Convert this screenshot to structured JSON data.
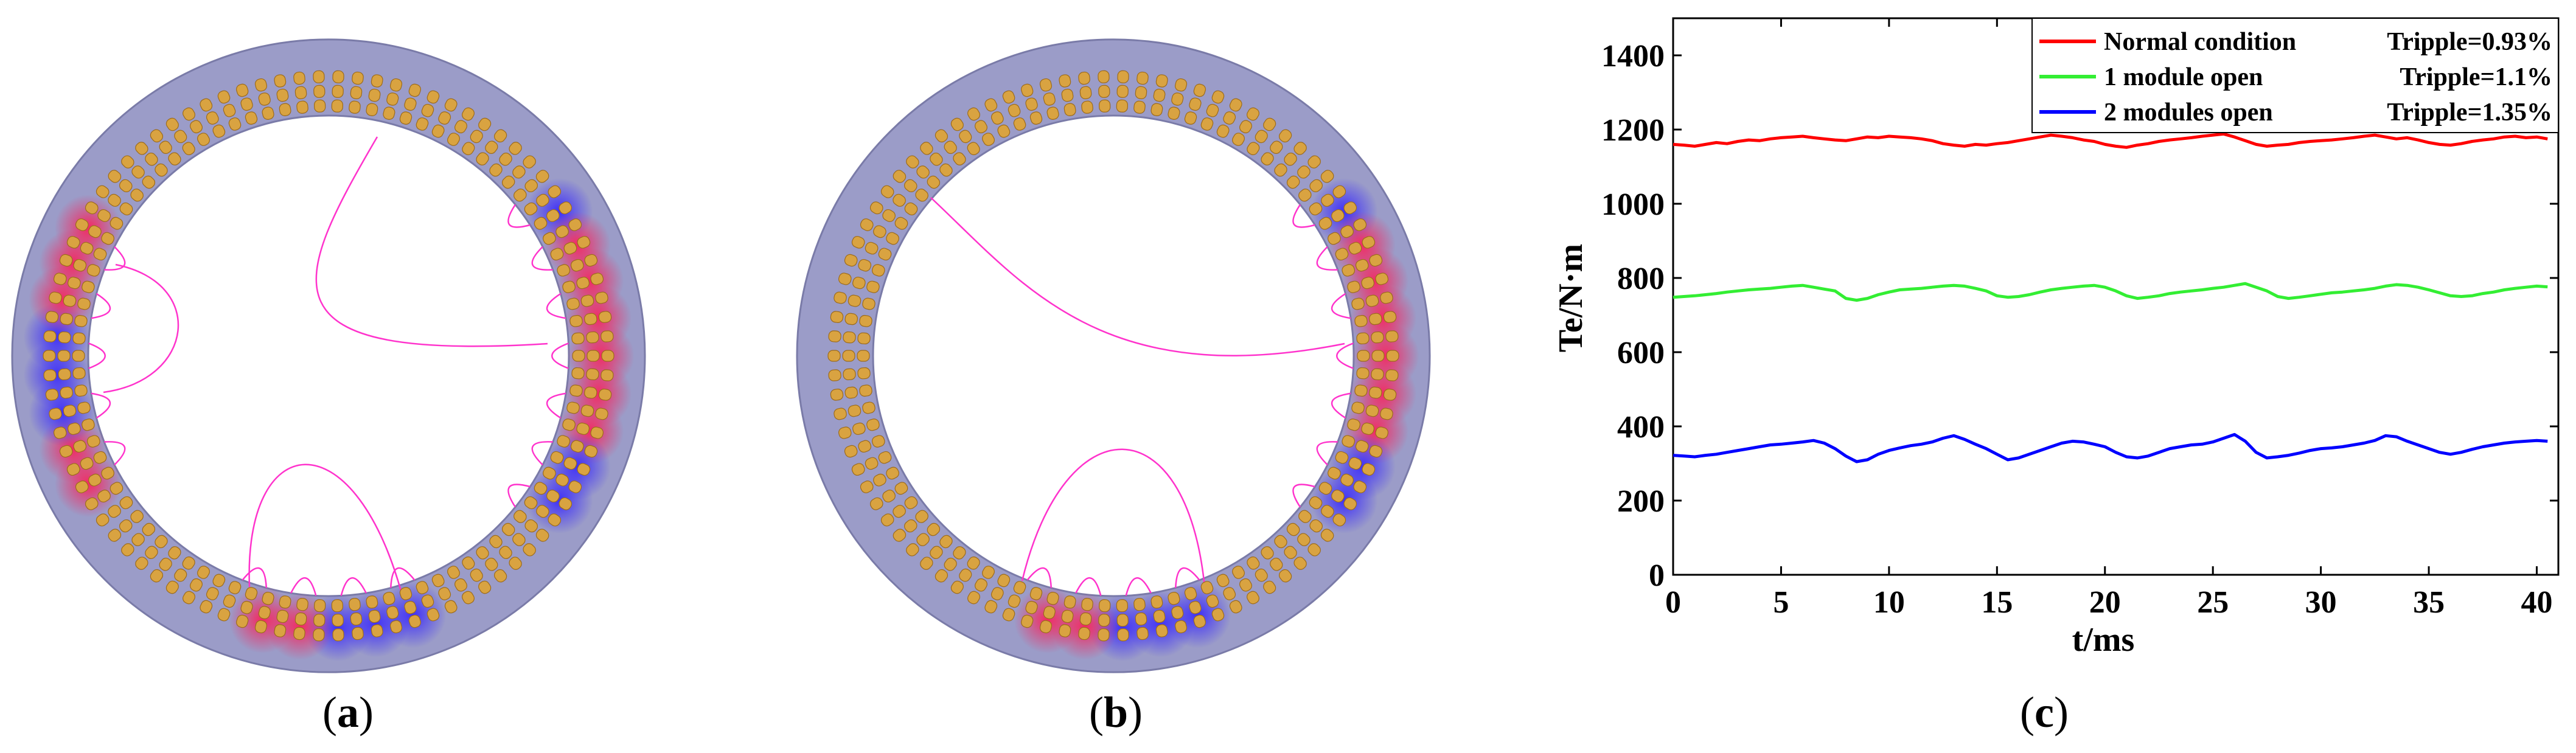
{
  "figure": {
    "panels": [
      {
        "id": "a",
        "caption_open": "(",
        "caption_letter": "a",
        "caption_close": ")"
      },
      {
        "id": "b",
        "caption_open": "(",
        "caption_letter": "b",
        "caption_close": ")"
      },
      {
        "id": "c",
        "caption_open": "(",
        "caption_letter": "c",
        "caption_close": ")"
      }
    ]
  },
  "colors": {
    "stator": "#9b9cc8",
    "winding": "#d9a341",
    "flux_line": "#ff33cc",
    "flux_positive": "#ff1a55",
    "flux_negative": "#3322ff"
  },
  "motor_views": [
    {
      "panel": "a",
      "slot_count": 90,
      "excited_regions_deg": [
        [
          -38,
          38
        ],
        [
          70,
          110
        ],
        [
          145,
          215
        ]
      ]
    },
    {
      "panel": "b",
      "slot_count": 90,
      "excited_regions_deg": [
        [
          -38,
          38
        ],
        [
          70,
          110
        ]
      ]
    }
  ],
  "chart_data": {
    "type": "line",
    "xlabel": "t/ms",
    "ylabel": "Te/N·m",
    "xlim": [
      0,
      41
    ],
    "ylim": [
      0,
      1500
    ],
    "xticks": [
      0,
      5,
      10,
      15,
      20,
      25,
      30,
      35,
      40
    ],
    "yticks": [
      0,
      200,
      400,
      600,
      800,
      1000,
      1200,
      1400
    ],
    "grid": false,
    "legend_position": "top-right",
    "x": [
      0,
      0.5,
      1,
      1.5,
      2,
      2.5,
      3,
      3.5,
      4,
      4.5,
      5,
      5.5,
      6,
      6.5,
      7,
      7.5,
      8,
      8.5,
      9,
      9.5,
      10,
      10.5,
      11,
      11.5,
      12,
      12.5,
      13,
      13.5,
      14,
      14.5,
      15,
      15.5,
      16,
      16.5,
      17,
      17.5,
      18,
      18.5,
      19,
      19.5,
      20,
      20.5,
      21,
      21.5,
      22,
      22.5,
      23,
      23.5,
      24,
      24.5,
      25,
      25.5,
      26,
      26.5,
      27,
      27.5,
      28,
      28.5,
      29,
      29.5,
      30,
      30.5,
      31,
      31.5,
      32,
      32.5,
      33,
      33.5,
      34,
      34.5,
      35,
      35.5,
      36,
      36.5,
      37,
      37.5,
      38,
      38.5,
      39,
      39.5,
      40,
      40.5
    ],
    "series": [
      {
        "name": "Normal condition",
        "ripple": "Tripple=0.93%",
        "color": "#ff0000",
        "values": [
          1160,
          1158,
          1155,
          1160,
          1165,
          1162,
          1168,
          1172,
          1170,
          1175,
          1178,
          1180,
          1182,
          1178,
          1175,
          1172,
          1170,
          1175,
          1180,
          1178,
          1182,
          1180,
          1178,
          1175,
          1170,
          1162,
          1158,
          1155,
          1160,
          1158,
          1162,
          1165,
          1170,
          1175,
          1180,
          1185,
          1182,
          1178,
          1172,
          1168,
          1160,
          1155,
          1152,
          1158,
          1162,
          1168,
          1172,
          1175,
          1178,
          1182,
          1185,
          1188,
          1180,
          1170,
          1160,
          1155,
          1158,
          1160,
          1165,
          1168,
          1170,
          1172,
          1175,
          1178,
          1182,
          1185,
          1180,
          1175,
          1178,
          1172,
          1165,
          1160,
          1158,
          1162,
          1168,
          1172,
          1175,
          1180,
          1182,
          1178,
          1180,
          1175
        ]
      },
      {
        "name": "1 module open",
        "ripple": "Tripple=1.1%",
        "color": "#33ee33",
        "values": [
          748,
          750,
          752,
          755,
          758,
          762,
          765,
          768,
          770,
          772,
          775,
          778,
          780,
          775,
          770,
          765,
          745,
          740,
          745,
          755,
          762,
          768,
          770,
          772,
          775,
          778,
          780,
          778,
          772,
          765,
          752,
          748,
          750,
          755,
          762,
          768,
          772,
          775,
          778,
          780,
          775,
          765,
          752,
          745,
          748,
          752,
          758,
          762,
          765,
          768,
          772,
          775,
          780,
          785,
          775,
          765,
          750,
          745,
          748,
          752,
          756,
          760,
          762,
          765,
          768,
          772,
          778,
          782,
          780,
          775,
          768,
          760,
          752,
          750,
          752,
          758,
          762,
          768,
          772,
          775,
          778,
          776
        ]
      },
      {
        "name": "2 modules open",
        "ripple": "Tripple=1.35%",
        "color": "#0000ff",
        "values": [
          322,
          320,
          318,
          322,
          325,
          330,
          335,
          340,
          345,
          350,
          352,
          355,
          358,
          362,
          355,
          340,
          320,
          305,
          310,
          325,
          335,
          342,
          348,
          352,
          358,
          368,
          375,
          365,
          352,
          340,
          325,
          310,
          315,
          325,
          335,
          345,
          355,
          360,
          358,
          352,
          345,
          330,
          318,
          315,
          320,
          330,
          340,
          345,
          350,
          352,
          358,
          368,
          378,
          360,
          330,
          315,
          318,
          322,
          328,
          335,
          340,
          342,
          345,
          350,
          355,
          362,
          375,
          372,
          360,
          350,
          340,
          330,
          325,
          330,
          338,
          345,
          350,
          355,
          358,
          360,
          362,
          360
        ]
      }
    ]
  }
}
